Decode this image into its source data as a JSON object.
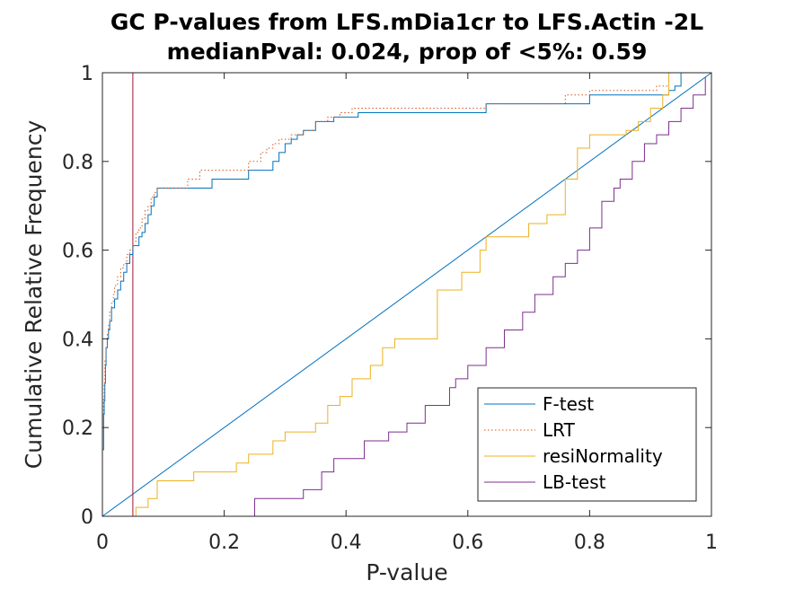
{
  "chart_data": {
    "type": "line",
    "title": "GC P-values from LFS.mDia1cr to LFS.Actin -2L",
    "subtitle": "medianPval: 0.024, prop of <5%: 0.59",
    "xlabel": "P-value",
    "ylabel": "Cumulative Relative Frequency",
    "xlim": [
      0,
      1
    ],
    "ylim": [
      0,
      1
    ],
    "xticks": [
      0,
      0.2,
      0.4,
      0.6,
      0.8,
      1
    ],
    "xtick_labels": [
      "0",
      "0.2",
      "0.4",
      "0.6",
      "0.8",
      "1"
    ],
    "yticks": [
      0,
      0.2,
      0.4,
      0.6,
      0.8,
      1
    ],
    "ytick_labels": [
      "0",
      "0.2",
      "0.4",
      "0.6",
      "0.8",
      "1"
    ],
    "grid": false,
    "legend_position": "bottom-right",
    "reference_lines": [
      {
        "type": "diagonal",
        "from": [
          0,
          0
        ],
        "to": [
          1,
          1
        ],
        "color": "#0072BD"
      },
      {
        "type": "vertical",
        "x": 0.05,
        "color": "#A2142F"
      }
    ],
    "series": [
      {
        "name": "F-test",
        "color": "#0072BD",
        "style": "solid",
        "x": [
          0,
          0.002,
          0.003,
          0.004,
          0.005,
          0.006,
          0.008,
          0.01,
          0.012,
          0.015,
          0.02,
          0.025,
          0.03,
          0.035,
          0.04,
          0.045,
          0.05,
          0.06,
          0.065,
          0.07,
          0.075,
          0.08,
          0.085,
          0.09,
          0.095,
          0.1,
          0.115,
          0.13,
          0.145,
          0.16,
          0.18,
          0.24,
          0.28,
          0.29,
          0.3,
          0.31,
          0.32,
          0.33,
          0.35,
          0.38,
          0.4,
          0.42,
          0.63,
          0.8,
          0.92,
          0.93,
          0.94,
          0.95
        ],
        "y": [
          0.15,
          0.23,
          0.26,
          0.3,
          0.34,
          0.38,
          0.4,
          0.42,
          0.44,
          0.47,
          0.49,
          0.51,
          0.53,
          0.55,
          0.57,
          0.59,
          0.61,
          0.63,
          0.64,
          0.66,
          0.68,
          0.7,
          0.72,
          0.74,
          0.74,
          0.74,
          0.74,
          0.74,
          0.74,
          0.74,
          0.76,
          0.78,
          0.8,
          0.82,
          0.84,
          0.85,
          0.86,
          0.87,
          0.89,
          0.9,
          0.9,
          0.91,
          0.93,
          0.95,
          0.95,
          0.96,
          0.97,
          1.0
        ]
      },
      {
        "name": "LRT",
        "color": "#D95319",
        "style": "dotted",
        "x": [
          0,
          0.002,
          0.003,
          0.004,
          0.006,
          0.008,
          0.01,
          0.012,
          0.015,
          0.018,
          0.02,
          0.025,
          0.03,
          0.035,
          0.04,
          0.045,
          0.05,
          0.055,
          0.06,
          0.065,
          0.07,
          0.075,
          0.08,
          0.085,
          0.09,
          0.095,
          0.14,
          0.16,
          0.18,
          0.24,
          0.26,
          0.27,
          0.28,
          0.29,
          0.31,
          0.33,
          0.35,
          0.37,
          0.39,
          0.41,
          0.63,
          0.76,
          0.8,
          0.91,
          0.93
        ],
        "y": [
          0.2,
          0.27,
          0.3,
          0.35,
          0.38,
          0.41,
          0.43,
          0.46,
          0.48,
          0.5,
          0.52,
          0.54,
          0.56,
          0.57,
          0.59,
          0.6,
          0.62,
          0.64,
          0.65,
          0.67,
          0.69,
          0.7,
          0.72,
          0.73,
          0.74,
          0.74,
          0.76,
          0.78,
          0.78,
          0.8,
          0.82,
          0.83,
          0.84,
          0.85,
          0.86,
          0.87,
          0.89,
          0.9,
          0.91,
          0.92,
          0.93,
          0.95,
          0.96,
          0.97,
          1.0
        ]
      },
      {
        "name": "resiNormality",
        "color": "#EDB120",
        "style": "solid",
        "x": [
          0.05,
          0.055,
          0.075,
          0.09,
          0.15,
          0.22,
          0.24,
          0.28,
          0.3,
          0.35,
          0.37,
          0.39,
          0.41,
          0.44,
          0.46,
          0.48,
          0.55,
          0.59,
          0.62,
          0.63,
          0.7,
          0.73,
          0.76,
          0.78,
          0.8,
          0.86,
          0.88,
          0.9,
          0.92,
          0.93
        ],
        "y": [
          0,
          0.02,
          0.04,
          0.08,
          0.1,
          0.12,
          0.14,
          0.17,
          0.19,
          0.21,
          0.25,
          0.27,
          0.31,
          0.34,
          0.38,
          0.4,
          0.51,
          0.55,
          0.6,
          0.63,
          0.66,
          0.68,
          0.76,
          0.83,
          0.86,
          0.87,
          0.89,
          0.92,
          0.95,
          1.0
        ]
      },
      {
        "name": "LB-test",
        "color": "#7E2F8E",
        "style": "solid",
        "x": [
          0.16,
          0.25,
          0.33,
          0.36,
          0.38,
          0.43,
          0.47,
          0.5,
          0.53,
          0.57,
          0.58,
          0.6,
          0.63,
          0.66,
          0.69,
          0.71,
          0.74,
          0.76,
          0.78,
          0.8,
          0.82,
          0.84,
          0.85,
          0.87,
          0.89,
          0.91,
          0.93,
          0.95,
          0.97,
          0.99
        ],
        "y": [
          0,
          0.04,
          0.06,
          0.1,
          0.13,
          0.17,
          0.19,
          0.21,
          0.25,
          0.29,
          0.31,
          0.34,
          0.38,
          0.42,
          0.46,
          0.5,
          0.54,
          0.57,
          0.6,
          0.65,
          0.71,
          0.74,
          0.76,
          0.8,
          0.84,
          0.86,
          0.89,
          0.92,
          0.95,
          0.99
        ]
      }
    ]
  }
}
